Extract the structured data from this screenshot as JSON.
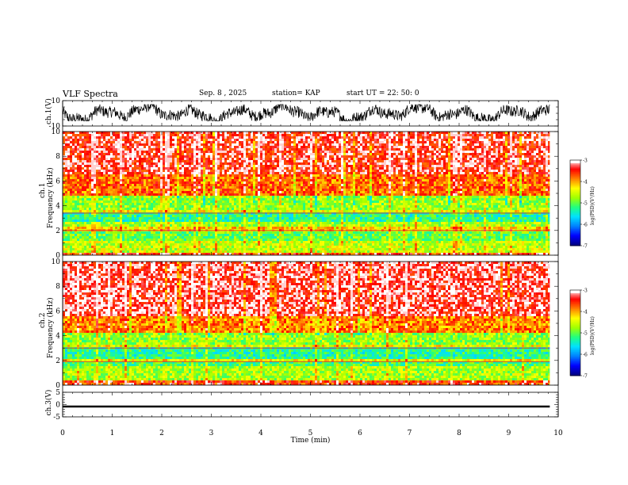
{
  "header": {
    "title": "VLF Spectra",
    "date": "Sep. 8 , 2025",
    "station": "station= KAP",
    "start": "start UT =  22: 50: 0"
  },
  "chart_data": [
    {
      "type": "line",
      "panel": "ch1-waveform",
      "ylabel": "ch.1(V)",
      "ylim": [
        -10,
        10
      ],
      "yticks": [
        "10",
        "-10"
      ],
      "xlim": [
        0,
        10
      ],
      "trace_range_approx": [
        -6,
        7
      ],
      "trace_color": "#000000"
    },
    {
      "type": "heatmap",
      "panel": "ch1-spectrogram",
      "ylabel": "ch.1\nFrequency (kHz)",
      "ylim": [
        0,
        10
      ],
      "yticks": [
        "0",
        "2",
        "4",
        "6",
        "8",
        "10"
      ],
      "xlim": [
        0,
        10
      ],
      "data_extent_min": 9.83,
      "bands_kHz": [
        {
          "from": 0.0,
          "to": 0.25,
          "level": -3.6
        },
        {
          "from": 0.25,
          "to": 1.2,
          "level": -4.6
        },
        {
          "from": 1.2,
          "to": 2.0,
          "level": -5.0
        },
        {
          "from": 2.0,
          "to": 2.3,
          "level": -4.2
        },
        {
          "from": 2.3,
          "to": 2.6,
          "level": -4.7
        },
        {
          "from": 2.6,
          "to": 3.4,
          "level": -5.3
        },
        {
          "from": 3.4,
          "to": 3.7,
          "level": -4.4
        },
        {
          "from": 3.7,
          "to": 4.8,
          "level": -4.8
        },
        {
          "from": 4.8,
          "to": 6.5,
          "level": -3.8
        },
        {
          "from": 6.5,
          "to": 10.0,
          "level": -3.4
        }
      ],
      "colorbar": {
        "label": "log(PSD)(V²/Hz)",
        "ticks": [
          "-3",
          "-4",
          "-5",
          "-6",
          "-7"
        ],
        "range": [
          -7,
          -3
        ]
      }
    },
    {
      "type": "heatmap",
      "panel": "ch2-spectrogram",
      "ylabel": "ch.2\nFrequency (kHz)",
      "ylim": [
        0,
        10
      ],
      "yticks": [
        "0",
        "2",
        "4",
        "6",
        "8",
        "10"
      ],
      "xlim": [
        0,
        10
      ],
      "data_extent_min": 9.83,
      "bands_kHz": [
        {
          "from": 0.0,
          "to": 0.3,
          "level": -3.6
        },
        {
          "from": 0.3,
          "to": 1.5,
          "level": -4.7
        },
        {
          "from": 1.5,
          "to": 1.9,
          "level": -5.1
        },
        {
          "from": 1.9,
          "to": 2.2,
          "level": -4.3
        },
        {
          "from": 2.2,
          "to": 3.0,
          "level": -5.3
        },
        {
          "from": 3.0,
          "to": 3.3,
          "level": -4.4
        },
        {
          "from": 3.3,
          "to": 4.2,
          "level": -4.8
        },
        {
          "from": 4.2,
          "to": 5.5,
          "level": -3.9
        },
        {
          "from": 5.5,
          "to": 10.0,
          "level": -3.3
        }
      ],
      "colorbar": {
        "label": "log(PSD)(V²/Hz)",
        "ticks": [
          "-3",
          "-4",
          "-5",
          "-6",
          "-7"
        ],
        "range": [
          -7,
          -3
        ]
      }
    },
    {
      "type": "line",
      "panel": "ch3-waveform",
      "ylabel": "ch.3(V)",
      "ylim": [
        -5,
        5
      ],
      "yticks": [
        "5",
        "0",
        "-5"
      ],
      "xlim": [
        0,
        10
      ],
      "trace_range_approx": [
        -1.2,
        -0.4
      ],
      "trace_color": "#000000",
      "xlabel": "Time (min)",
      "xticks": [
        "0",
        "1",
        "2",
        "3",
        "4",
        "5",
        "6",
        "7",
        "8",
        "9",
        "10"
      ]
    }
  ],
  "colors": {
    "colormap": [
      "#00007f",
      "#0000ff",
      "#0080ff",
      "#00e0ff",
      "#20ff80",
      "#a0ff00",
      "#ffff00",
      "#ff8000",
      "#ff0000",
      "#ffffff"
    ]
  }
}
